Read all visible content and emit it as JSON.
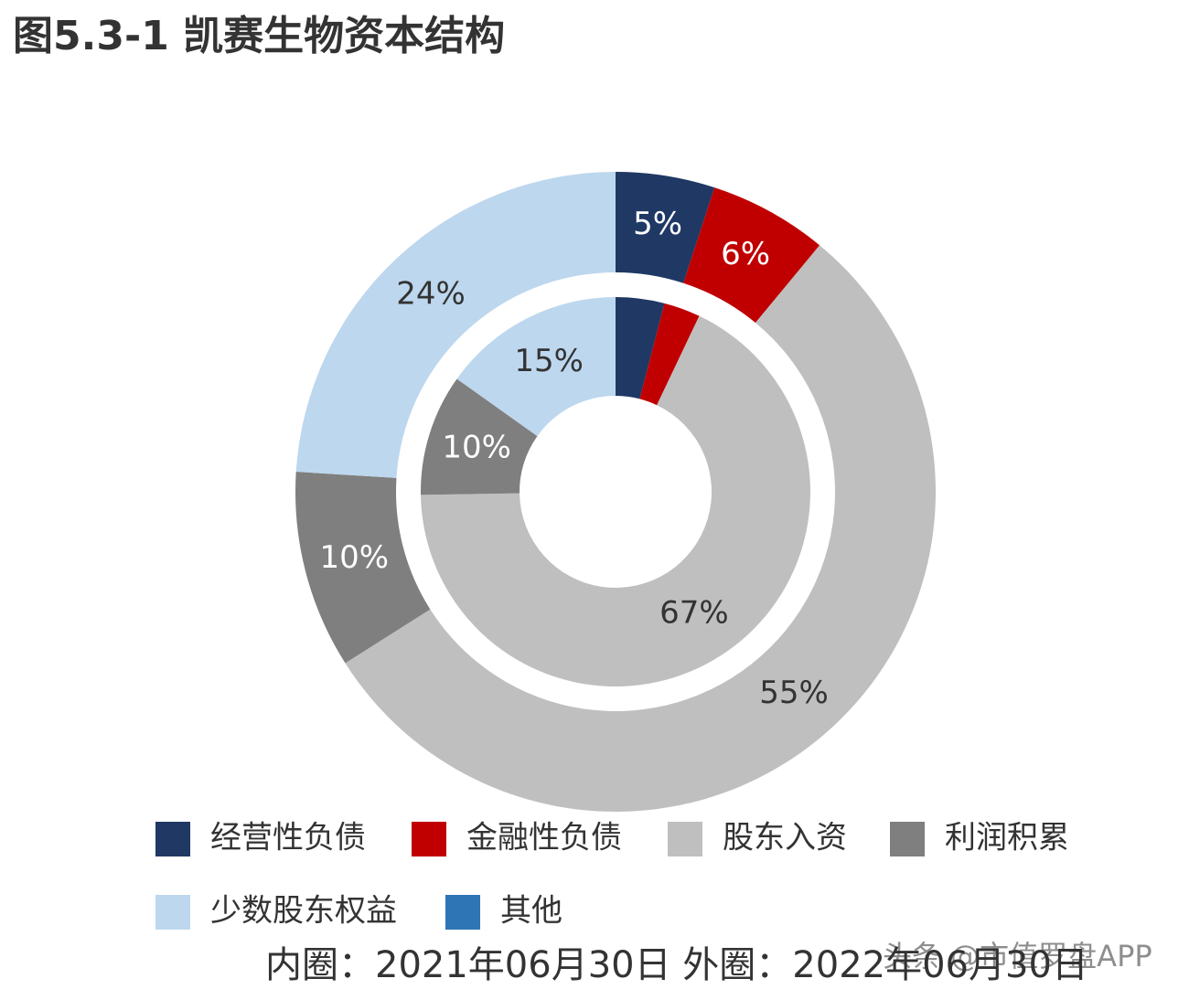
{
  "chart_data": {
    "type": "donut",
    "title": "图5.3-1 凯赛生物资本结构",
    "note": "内圈：2021年06月30日 外圈：2022年06月30日",
    "watermark": "头条 @市值罗盘APP",
    "series": [
      {
        "name": "经营性负债",
        "color": "#1f3864",
        "values": [
          4,
          5
        ],
        "value_labels": [
          null,
          "5%"
        ]
      },
      {
        "name": "金融性负债",
        "color": "#c00000",
        "values": [
          3,
          6
        ],
        "value_labels": [
          null,
          "6%"
        ]
      },
      {
        "name": "股东入资",
        "color": "#bfbfbf",
        "values": [
          67,
          55
        ],
        "value_labels": [
          "67%",
          "55%"
        ]
      },
      {
        "name": "利润积累",
        "color": "#7f7f7f",
        "values": [
          10,
          10
        ],
        "value_labels": [
          "10%",
          "10%"
        ]
      },
      {
        "name": "少数股东权益",
        "color": "#bdd7ee",
        "values": [
          15,
          24
        ],
        "value_labels": [
          "15%",
          "24%"
        ]
      },
      {
        "name": "其他",
        "color": "#2e75b6",
        "values": [
          0,
          0
        ],
        "value_labels": [
          null,
          null
        ]
      }
    ]
  }
}
